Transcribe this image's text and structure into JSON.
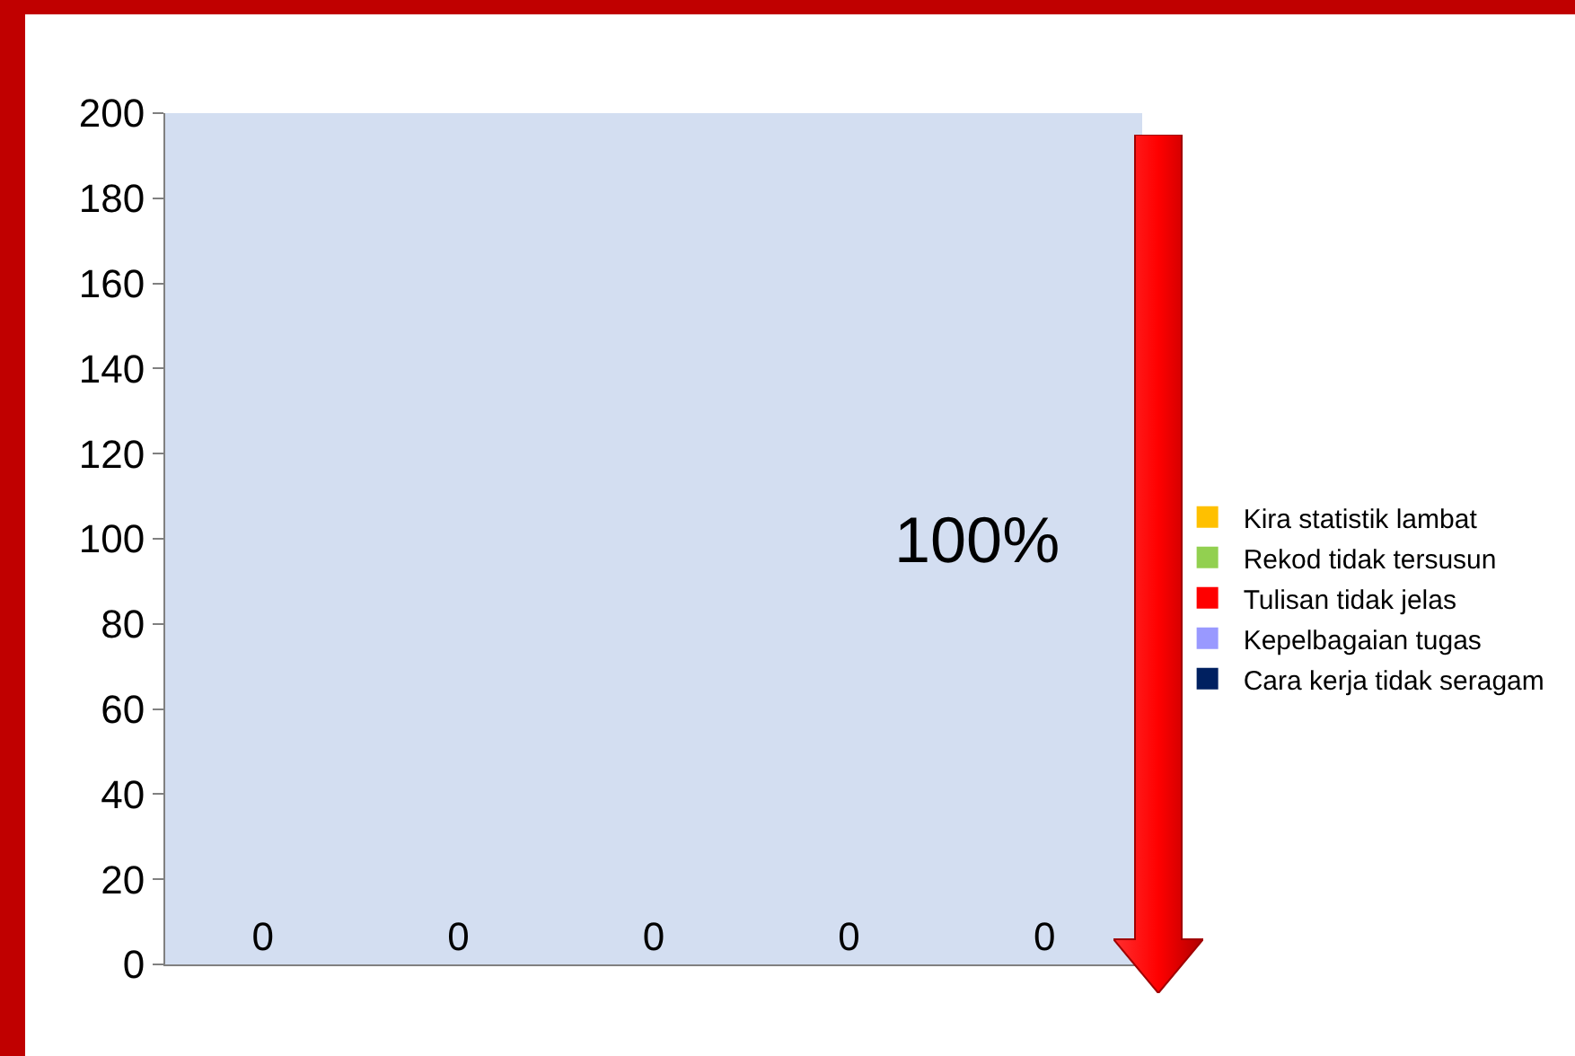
{
  "chart_data": {
    "type": "bar",
    "categories": [
      null,
      null,
      null,
      null,
      null
    ],
    "series": [
      {
        "name": "Kira statistik lambat",
        "color": "#ffc000",
        "values": [
          0,
          null,
          null,
          null,
          null
        ]
      },
      {
        "name": "Rekod tidak tersusun",
        "color": "#92d050",
        "values": [
          null,
          0,
          null,
          null,
          null
        ]
      },
      {
        "name": "Tulisan tidak jelas",
        "color": "#ff0000",
        "values": [
          null,
          null,
          0,
          null,
          null
        ]
      },
      {
        "name": "Kepelbagaian tugas",
        "color": "#9999ff",
        "values": [
          null,
          null,
          null,
          0,
          null
        ]
      },
      {
        "name": "Cara kerja tidak seragam",
        "color": "#002060",
        "values": [
          null,
          null,
          null,
          null,
          0
        ]
      }
    ],
    "ylim": [
      0,
      200
    ],
    "yticks": [
      0,
      20,
      40,
      60,
      80,
      100,
      120,
      140,
      160,
      180,
      200
    ],
    "grid": false,
    "legend": "right",
    "data_labels": true,
    "annotations": [
      "100%"
    ]
  }
}
